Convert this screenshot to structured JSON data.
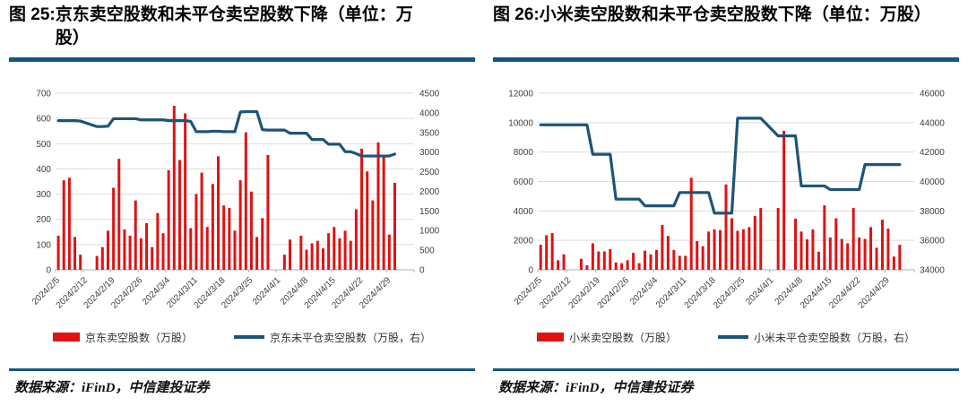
{
  "chart_data": [
    {
      "type": "bar+line",
      "title_label": "图 25:",
      "title_text": "京东卖空股数和未平仓卖空股数下降（单位：万股）",
      "legend": {
        "bars": "京东卖空股数（万股）",
        "line": "京东未平仓卖空股数（万股，右）"
      },
      "source": "数据来源：iFinD，中信建投证券",
      "colors": {
        "bar": "#e01212",
        "line": "#1e5478",
        "grid": "#dcdcdc",
        "axis": "#b3b3b3"
      },
      "left_axis": {
        "min": 0,
        "max": 700,
        "step": 100
      },
      "right_axis": {
        "min": 0,
        "max": 4500,
        "step": 500
      },
      "weeks": [
        {
          "label": "2024/2/5",
          "bars": [
            135,
            355,
            365,
            130,
            60
          ],
          "line": [
            3800,
            3800,
            3800,
            3800,
            3790
          ]
        },
        {
          "label": "2024/2/12",
          "bars": [
            null,
            null,
            55,
            90,
            155
          ],
          "line": [
            null,
            null,
            3650,
            3650,
            3660
          ]
        },
        {
          "label": "2024/2/19",
          "bars": [
            325,
            440,
            160,
            135,
            275
          ],
          "line": [
            3850,
            3850,
            3850,
            3850,
            3850
          ]
        },
        {
          "label": "2024/2/26",
          "bars": [
            125,
            185,
            90,
            225,
            145
          ],
          "line": [
            3820,
            3820,
            3820,
            3820,
            3820
          ]
        },
        {
          "label": "2024/3/4",
          "bars": [
            395,
            650,
            435,
            620,
            165
          ],
          "line": [
            3800,
            3800,
            3800,
            3800,
            3780
          ]
        },
        {
          "label": "2024/3/11",
          "bars": [
            300,
            385,
            170,
            340,
            450
          ],
          "line": [
            3520,
            3520,
            3520,
            3530,
            3530
          ]
        },
        {
          "label": "2024/3/18",
          "bars": [
            255,
            245,
            155,
            355,
            545
          ],
          "line": [
            3520,
            3520,
            3520,
            4020,
            4030
          ]
        },
        {
          "label": "2024/3/25",
          "bars": [
            310,
            130,
            205,
            455,
            null
          ],
          "line": [
            4030,
            4030,
            3570,
            3560,
            null
          ]
        },
        {
          "label": "2024/4/1",
          "bars": [
            null,
            60,
            120,
            null,
            135
          ],
          "line": [
            null,
            3560,
            3480,
            null,
            3480
          ]
        },
        {
          "label": "2024/4/8",
          "bars": [
            80,
            105,
            115,
            85,
            145
          ],
          "line": [
            3480,
            3320,
            3320,
            3320,
            3200
          ]
        },
        {
          "label": "2024/4/15",
          "bars": [
            170,
            125,
            155,
            115,
            240
          ],
          "line": [
            3200,
            3200,
            3010,
            3010,
            2960
          ]
        },
        {
          "label": "2024/4/22",
          "bars": [
            480,
            390,
            275,
            505,
            450
          ],
          "line": [
            2900,
            2900,
            2900,
            2900,
            2900
          ]
        },
        {
          "label": "2024/4/29",
          "bars": [
            140,
            345,
            null,
            null,
            null
          ],
          "line": [
            2900,
            2950,
            null,
            null,
            null
          ]
        }
      ]
    },
    {
      "type": "bar+line",
      "title_label": "图 26:",
      "title_text": "小米卖空股数和未平仓卖空股数下降（单位：万股）",
      "legend": {
        "bars": "小米卖空股数（万股）",
        "line": "小米未平仓卖空股数（万股，右）"
      },
      "source": "数据来源：iFinD，中信建投证券",
      "colors": {
        "bar": "#e01212",
        "line": "#1e5478",
        "grid": "#dcdcdc",
        "axis": "#b3b3b3"
      },
      "left_axis": {
        "min": 0,
        "max": 12000,
        "step": 2000
      },
      "right_axis": {
        "min": 34000,
        "max": 46000,
        "step": 2000
      },
      "weeks": [
        {
          "label": "2024/2/5",
          "bars": [
            1700,
            2350,
            2500,
            650,
            1050
          ],
          "line": [
            43850,
            43850,
            43850,
            43850,
            43850
          ]
        },
        {
          "label": "2024/2/12",
          "bars": [
            null,
            null,
            750,
            300,
            1800
          ],
          "line": [
            null,
            null,
            43850,
            43850,
            41850
          ]
        },
        {
          "label": "2024/2/19",
          "bars": [
            1250,
            1250,
            1400,
            500,
            450
          ],
          "line": [
            41850,
            41850,
            41850,
            38800,
            38800
          ]
        },
        {
          "label": "2024/2/26",
          "bars": [
            650,
            1150,
            450,
            1300,
            1050
          ],
          "line": [
            38800,
            38800,
            38800,
            38350,
            38350
          ]
        },
        {
          "label": "2024/3/4",
          "bars": [
            1350,
            3050,
            2300,
            1350,
            950
          ],
          "line": [
            38350,
            38350,
            38350,
            38350,
            39250
          ]
        },
        {
          "label": "2024/3/11",
          "bars": [
            950,
            6250,
            1950,
            1600,
            2600
          ],
          "line": [
            39250,
            39250,
            39250,
            39250,
            39250
          ]
        },
        {
          "label": "2024/3/18",
          "bars": [
            2750,
            2700,
            5800,
            3500,
            2650
          ],
          "line": [
            37850,
            37850,
            37850,
            37850,
            44300
          ]
        },
        {
          "label": "2024/3/25",
          "bars": [
            2750,
            2900,
            3660,
            4200,
            null
          ],
          "line": [
            44300,
            44300,
            44300,
            44300,
            null
          ]
        },
        {
          "label": "2024/4/1",
          "bars": [
            null,
            4200,
            9450,
            null,
            3470
          ],
          "line": [
            null,
            43100,
            43100,
            null,
            43100
          ]
        },
        {
          "label": "2024/4/8",
          "bars": [
            2600,
            2070,
            2740,
            1230,
            4380
          ],
          "line": [
            39700,
            39700,
            39700,
            39700,
            39700
          ]
        },
        {
          "label": "2024/4/15",
          "bars": [
            2200,
            3500,
            2100,
            1800,
            4200
          ],
          "line": [
            39450,
            39450,
            39450,
            39450,
            39450
          ]
        },
        {
          "label": "2024/4/22",
          "bars": [
            2200,
            2100,
            2900,
            1500,
            3400
          ],
          "line": [
            39450,
            41150,
            41150,
            41150,
            41150
          ]
        },
        {
          "label": "2024/4/29",
          "bars": [
            2800,
            900,
            1700,
            null,
            null
          ],
          "line": [
            41150,
            41150,
            41150,
            null,
            null
          ]
        }
      ]
    }
  ]
}
